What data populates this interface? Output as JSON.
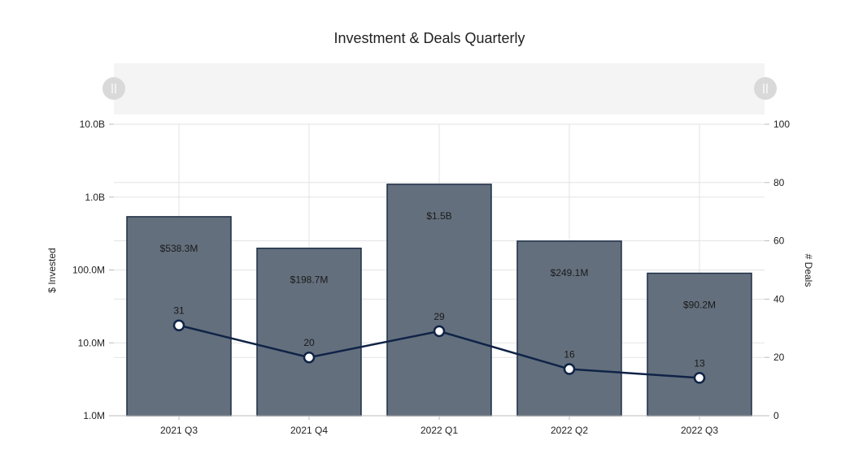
{
  "chart_data": {
    "type": "bar",
    "title": "Investment & Deals Quarterly",
    "categories": [
      "2021 Q3",
      "2021 Q4",
      "2022 Q1",
      "2022 Q2",
      "2022 Q3"
    ],
    "series": [
      {
        "name": "$ Invested",
        "type": "bar",
        "axis": "left",
        "values": [
          538300000,
          198700000,
          1500000000,
          249100000,
          90200000
        ],
        "labels": [
          "$538.3M",
          "$198.7M",
          "$1.5B",
          "$249.1M",
          "$90.2M"
        ]
      },
      {
        "name": "# Deals",
        "type": "line",
        "axis": "right",
        "values": [
          31,
          20,
          29,
          16,
          13
        ],
        "labels": [
          "31",
          "20",
          "29",
          "16",
          "13"
        ]
      }
    ],
    "y_left": {
      "label": "$ Invested",
      "scale": "log",
      "range": [
        1000000,
        10000000000
      ],
      "ticks": [
        1000000,
        10000000,
        100000000,
        1000000000,
        10000000000
      ],
      "tick_labels": [
        "1.0M",
        "10.0M",
        "100.0M",
        "1.0B",
        "10.0B"
      ]
    },
    "y_right": {
      "label": "# Deals",
      "scale": "linear",
      "range": [
        0,
        100
      ],
      "ticks": [
        0,
        20,
        40,
        60,
        80,
        100
      ],
      "tick_labels": [
        "0",
        "20",
        "40",
        "60",
        "80",
        "100"
      ]
    },
    "grid": true,
    "legend": "none",
    "colors": {
      "bar_fill": "#636f7d",
      "bar_stroke": "#1f2f47",
      "line": "#0f2346",
      "grid": "#e3e3e3",
      "scrollbar_track": "#f4f4f4",
      "scrollbar_handle": "#d9d9d9"
    }
  }
}
